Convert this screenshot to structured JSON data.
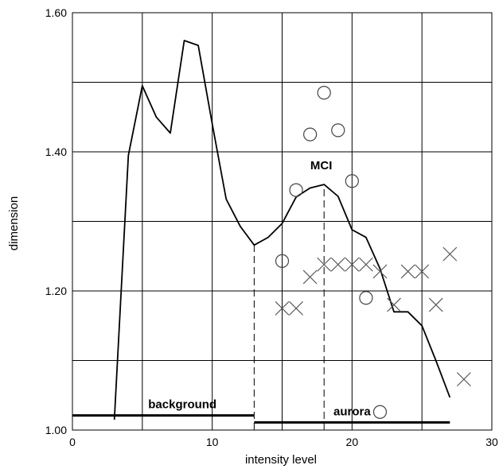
{
  "chart_data": {
    "type": "line",
    "xlabel": "intensity level",
    "ylabel": "dimension",
    "xlim": [
      0,
      30
    ],
    "ylim": [
      1.0,
      1.6
    ],
    "grid": true,
    "x_ticks": [
      0,
      5,
      10,
      15,
      20,
      25,
      30
    ],
    "x_tick_labels": [
      "0",
      "",
      "10",
      "",
      "20",
      "",
      "30"
    ],
    "y_ticks": [
      1.0,
      1.1,
      1.2,
      1.3,
      1.4,
      1.5,
      1.6
    ],
    "y_tick_labels": [
      "1.00",
      "",
      "1.20",
      "",
      "1.40",
      "",
      "1.60"
    ],
    "series": [
      {
        "style": "line",
        "x": [
          3,
          4,
          5,
          6,
          7,
          8,
          9,
          10,
          11,
          12,
          13,
          14,
          15,
          16,
          17,
          18,
          19,
          20,
          21,
          22,
          23,
          24,
          25,
          26,
          27
        ],
        "y": [
          1.015,
          1.395,
          1.495,
          1.45,
          1.427,
          1.56,
          1.553,
          1.44,
          1.332,
          1.293,
          1.266,
          1.277,
          1.297,
          1.335,
          1.348,
          1.353,
          1.336,
          1.288,
          1.277,
          1.232,
          1.17,
          1.17,
          1.15,
          1.1,
          1.047
        ]
      },
      {
        "style": "circle",
        "x": [
          15,
          16,
          17,
          18,
          19,
          20,
          21,
          22
        ],
        "y": [
          1.243,
          1.345,
          1.425,
          1.485,
          1.431,
          1.358,
          1.19,
          1.026
        ]
      },
      {
        "style": "cross",
        "x": [
          15,
          16,
          17,
          18,
          19,
          20,
          21,
          22,
          23,
          24,
          25,
          26,
          27,
          28
        ],
        "y": [
          1.175,
          1.175,
          1.22,
          1.238,
          1.238,
          1.238,
          1.238,
          1.228,
          1.18,
          1.228,
          1.228,
          1.18,
          1.253,
          1.073
        ]
      }
    ],
    "guides": [
      {
        "x": 13,
        "y0": 1.0,
        "y1": 1.266
      },
      {
        "x": 18,
        "y0": 1.0,
        "y1": 1.353
      }
    ],
    "ranges": [
      {
        "label": "background",
        "x0": 0,
        "x1": 13,
        "y": 1.021
      },
      {
        "label": "aurora",
        "x0": 13,
        "x1": 27,
        "y": 1.011
      }
    ],
    "annotations": [
      {
        "text": "MCI",
        "x": 17.8,
        "y": 1.375
      }
    ]
  }
}
